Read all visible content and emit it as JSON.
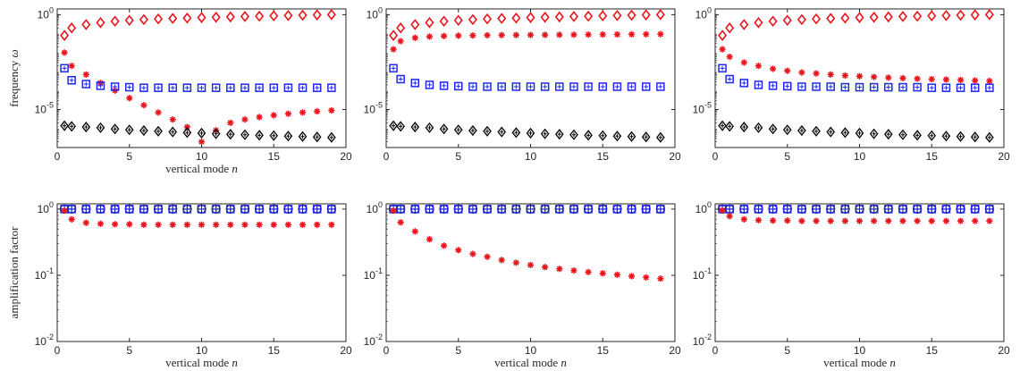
{
  "colors": {
    "red": "#e8141c",
    "blue": "#1c28e8",
    "black": "#000000",
    "axis": "#262626"
  },
  "chart_data": [
    {
      "type": "scatter",
      "yscale": "log",
      "xlim": [
        0,
        20
      ],
      "ylim": [
        1e-07,
        2
      ],
      "xticks": [
        "0",
        "5",
        "10",
        "15",
        "20"
      ],
      "yticks": [
        {
          "value": 1e-05,
          "base": "10",
          "exp": "-5"
        },
        {
          "value": 1,
          "base": "10",
          "exp": "0"
        }
      ],
      "xlabel": "vertical mode",
      "xlabel_var": "n",
      "ylabel": "frequency",
      "ylabel_var": "ω",
      "x": [
        0.5,
        1,
        2,
        3,
        4,
        5,
        6,
        7,
        8,
        9,
        10,
        11,
        12,
        13,
        14,
        15,
        16,
        17,
        18,
        19
      ],
      "series": [
        {
          "marker": "diamond",
          "color": "red",
          "values": [
            0.08,
            0.2,
            0.3,
            0.38,
            0.45,
            0.5,
            0.55,
            0.6,
            0.63,
            0.66,
            0.7,
            0.73,
            0.76,
            0.8,
            0.83,
            0.86,
            0.9,
            0.93,
            0.97,
            1.0
          ]
        },
        {
          "marker": "asterisk",
          "color": "red",
          "values": [
            0.01,
            0.002,
            0.0007,
            0.00025,
            0.0001,
            4e-05,
            1.7e-05,
            7e-06,
            3e-06,
            1.2e-06,
            2e-07,
            8e-07,
            2e-06,
            3e-06,
            4e-06,
            5e-06,
            6e-06,
            7e-06,
            8e-06,
            9e-06
          ]
        },
        {
          "marker": "square",
          "color": "blue",
          "values": [
            0.0015,
            0.00035,
            0.00022,
            0.00018,
            0.00016,
            0.00015,
            0.00014,
            0.00014,
            0.00014,
            0.00014,
            0.00014,
            0.00014,
            0.00014,
            0.00014,
            0.00014,
            0.00014,
            0.00014,
            0.00014,
            0.00014,
            0.00014
          ]
        },
        {
          "marker": "diamond-plus",
          "color": "black",
          "values": [
            1.4e-06,
            1.3e-06,
            1.2e-06,
            1.1e-06,
            9.5e-07,
            8.5e-07,
            7.8e-07,
            7.2e-07,
            6.6e-07,
            6.1e-07,
            5.7e-07,
            5.3e-07,
            5e-07,
            4.7e-07,
            4.4e-07,
            4.2e-07,
            4e-07,
            3.8e-07,
            3.6e-07,
            3.4e-07
          ]
        }
      ]
    },
    {
      "type": "scatter",
      "yscale": "log",
      "xlim": [
        0,
        20
      ],
      "ylim": [
        1e-07,
        2
      ],
      "xticks": [
        "0",
        "5",
        "10",
        "15",
        "20"
      ],
      "yticks": [
        {
          "value": 1e-05,
          "base": "10",
          "exp": "-5"
        },
        {
          "value": 1,
          "base": "10",
          "exp": "0"
        }
      ],
      "xlabel": "",
      "xlabel_var": "",
      "ylabel": "",
      "ylabel_var": "",
      "x": [
        0.5,
        1,
        2,
        3,
        4,
        5,
        6,
        7,
        8,
        9,
        10,
        11,
        12,
        13,
        14,
        15,
        16,
        17,
        18,
        19
      ],
      "series": [
        {
          "marker": "diamond",
          "color": "red",
          "values": [
            0.08,
            0.2,
            0.3,
            0.38,
            0.45,
            0.5,
            0.55,
            0.6,
            0.63,
            0.66,
            0.7,
            0.73,
            0.76,
            0.8,
            0.83,
            0.86,
            0.9,
            0.93,
            0.97,
            1.0
          ]
        },
        {
          "marker": "asterisk",
          "color": "red",
          "values": [
            0.015,
            0.04,
            0.06,
            0.07,
            0.075,
            0.078,
            0.08,
            0.082,
            0.083,
            0.084,
            0.085,
            0.086,
            0.087,
            0.088,
            0.089,
            0.09,
            0.091,
            0.092,
            0.093,
            0.094
          ]
        },
        {
          "marker": "square",
          "color": "blue",
          "values": [
            0.0015,
            0.0004,
            0.00025,
            0.0002,
            0.00018,
            0.00017,
            0.00016,
            0.00016,
            0.00016,
            0.00016,
            0.00016,
            0.00016,
            0.00016,
            0.00016,
            0.00016,
            0.00016,
            0.00016,
            0.00016,
            0.00016,
            0.00016
          ]
        },
        {
          "marker": "diamond-plus",
          "color": "black",
          "values": [
            1.4e-06,
            1.3e-06,
            1.2e-06,
            1.1e-06,
            9.5e-07,
            8.5e-07,
            7.8e-07,
            7.2e-07,
            6.6e-07,
            6.1e-07,
            5.7e-07,
            5.3e-07,
            5e-07,
            4.7e-07,
            4.4e-07,
            4.2e-07,
            4e-07,
            3.8e-07,
            3.6e-07,
            3.4e-07
          ]
        }
      ]
    },
    {
      "type": "scatter",
      "yscale": "log",
      "xlim": [
        0,
        20
      ],
      "ylim": [
        1e-07,
        2
      ],
      "xticks": [
        "0",
        "5",
        "10",
        "15",
        "20"
      ],
      "yticks": [
        {
          "value": 1e-05,
          "base": "10",
          "exp": "-5"
        },
        {
          "value": 1,
          "base": "10",
          "exp": "0"
        }
      ],
      "xlabel": "",
      "xlabel_var": "",
      "ylabel": "",
      "ylabel_var": "",
      "x": [
        0.5,
        1,
        2,
        3,
        4,
        5,
        6,
        7,
        8,
        9,
        10,
        11,
        12,
        13,
        14,
        15,
        16,
        17,
        18,
        19
      ],
      "series": [
        {
          "marker": "diamond",
          "color": "red",
          "values": [
            0.08,
            0.2,
            0.3,
            0.38,
            0.45,
            0.5,
            0.55,
            0.6,
            0.63,
            0.66,
            0.7,
            0.73,
            0.76,
            0.8,
            0.83,
            0.86,
            0.9,
            0.93,
            0.97,
            1.0
          ]
        },
        {
          "marker": "asterisk",
          "color": "red",
          "values": [
            0.015,
            0.006,
            0.003,
            0.002,
            0.0014,
            0.0011,
            0.0009,
            0.0008,
            0.0007,
            0.00062,
            0.00057,
            0.00052,
            0.00048,
            0.00045,
            0.00042,
            0.0004,
            0.00038,
            0.00036,
            0.00034,
            0.00032
          ]
        },
        {
          "marker": "square",
          "color": "blue",
          "values": [
            0.0015,
            0.0004,
            0.00025,
            0.0002,
            0.00018,
            0.00017,
            0.00016,
            0.00016,
            0.00016,
            0.00015,
            0.00015,
            0.00015,
            0.00015,
            0.00015,
            0.00015,
            0.00014,
            0.00014,
            0.00014,
            0.00014,
            0.00014
          ]
        },
        {
          "marker": "diamond-plus",
          "color": "black",
          "values": [
            1.4e-06,
            1.3e-06,
            1.2e-06,
            1.1e-06,
            9.5e-07,
            8.5e-07,
            7.8e-07,
            7.2e-07,
            6.6e-07,
            6.1e-07,
            5.7e-07,
            5.3e-07,
            5e-07,
            4.7e-07,
            4.4e-07,
            4.2e-07,
            4e-07,
            3.8e-07,
            3.6e-07,
            3.4e-07
          ]
        }
      ]
    },
    {
      "type": "scatter",
      "yscale": "log",
      "xlim": [
        0,
        20
      ],
      "ylim": [
        0.01,
        1.2
      ],
      "xticks": [
        "0",
        "5",
        "10",
        "15",
        "20"
      ],
      "yticks": [
        {
          "value": 0.01,
          "base": "10",
          "exp": "-2"
        },
        {
          "value": 0.1,
          "base": "10",
          "exp": "-1"
        },
        {
          "value": 1,
          "base": "10",
          "exp": "0"
        }
      ],
      "xlabel": "vertical mode",
      "xlabel_var": "n",
      "ylabel": "amplification factor",
      "ylabel_var": "",
      "x": [
        0.5,
        1,
        2,
        3,
        4,
        5,
        6,
        7,
        8,
        9,
        10,
        11,
        12,
        13,
        14,
        15,
        16,
        17,
        18,
        19
      ],
      "series": [
        {
          "marker": "circle-plus",
          "color": "black",
          "values": [
            1,
            1,
            1,
            1,
            1,
            1,
            1,
            1,
            1,
            1,
            1,
            1,
            1,
            1,
            1,
            1,
            1,
            1,
            1,
            1
          ]
        },
        {
          "marker": "square",
          "color": "blue",
          "values": [
            1,
            1,
            1,
            1,
            1,
            1,
            1,
            1,
            1,
            1,
            1,
            1,
            1,
            1,
            1,
            1,
            1,
            1,
            1,
            1
          ]
        },
        {
          "marker": "asterisk",
          "color": "red",
          "values": [
            0.95,
            0.7,
            0.62,
            0.6,
            0.59,
            0.59,
            0.58,
            0.58,
            0.58,
            0.58,
            0.58,
            0.58,
            0.58,
            0.58,
            0.58,
            0.58,
            0.58,
            0.58,
            0.58,
            0.58
          ]
        }
      ]
    },
    {
      "type": "scatter",
      "yscale": "log",
      "xlim": [
        0,
        20
      ],
      "ylim": [
        0.01,
        1.2
      ],
      "xticks": [
        "0",
        "5",
        "10",
        "15",
        "20"
      ],
      "yticks": [
        {
          "value": 0.01,
          "base": "10",
          "exp": "-2"
        },
        {
          "value": 0.1,
          "base": "10",
          "exp": "-1"
        },
        {
          "value": 1,
          "base": "10",
          "exp": "0"
        }
      ],
      "xlabel": "vertical mode",
      "xlabel_var": "n",
      "ylabel": "",
      "ylabel_var": "",
      "x": [
        0.5,
        1,
        2,
        3,
        4,
        5,
        6,
        7,
        8,
        9,
        10,
        11,
        12,
        13,
        14,
        15,
        16,
        17,
        18,
        19
      ],
      "series": [
        {
          "marker": "circle-plus",
          "color": "black",
          "values": [
            1,
            1,
            1,
            1,
            1,
            1,
            1,
            1,
            1,
            1,
            1,
            1,
            1,
            1,
            1,
            1,
            1,
            1,
            1,
            1
          ]
        },
        {
          "marker": "square",
          "color": "blue",
          "values": [
            1,
            1,
            1,
            1,
            1,
            1,
            1,
            1,
            1,
            1,
            1,
            1,
            1,
            1,
            1,
            1,
            1,
            1,
            1,
            1
          ]
        },
        {
          "marker": "asterisk",
          "color": "red",
          "values": [
            0.95,
            0.63,
            0.46,
            0.35,
            0.28,
            0.24,
            0.21,
            0.19,
            0.17,
            0.155,
            0.143,
            0.133,
            0.125,
            0.118,
            0.112,
            0.107,
            0.102,
            0.097,
            0.093,
            0.089
          ]
        }
      ]
    },
    {
      "type": "scatter",
      "yscale": "log",
      "xlim": [
        0,
        20
      ],
      "ylim": [
        0.01,
        1.2
      ],
      "xticks": [
        "0",
        "5",
        "10",
        "15",
        "20"
      ],
      "yticks": [
        {
          "value": 0.01,
          "base": "10",
          "exp": "-2"
        },
        {
          "value": 0.1,
          "base": "10",
          "exp": "-1"
        },
        {
          "value": 1,
          "base": "10",
          "exp": "0"
        }
      ],
      "xlabel": "vertical mode",
      "xlabel_var": "n",
      "ylabel": "",
      "ylabel_var": "",
      "x": [
        0.5,
        1,
        2,
        3,
        4,
        5,
        6,
        7,
        8,
        9,
        10,
        11,
        12,
        13,
        14,
        15,
        16,
        17,
        18,
        19
      ],
      "series": [
        {
          "marker": "circle-plus",
          "color": "black",
          "values": [
            1,
            1,
            1,
            1,
            1,
            1,
            1,
            1,
            1,
            1,
            1,
            1,
            1,
            1,
            1,
            1,
            1,
            1,
            1,
            1
          ]
        },
        {
          "marker": "square",
          "color": "blue",
          "values": [
            1,
            1,
            1,
            1,
            1,
            1,
            1,
            1,
            1,
            1,
            1,
            1,
            1,
            1,
            1,
            1,
            1,
            1,
            1,
            1
          ]
        },
        {
          "marker": "asterisk",
          "color": "red",
          "values": [
            0.96,
            0.78,
            0.7,
            0.68,
            0.67,
            0.67,
            0.66,
            0.66,
            0.66,
            0.66,
            0.66,
            0.66,
            0.66,
            0.66,
            0.66,
            0.66,
            0.66,
            0.66,
            0.66,
            0.66
          ]
        }
      ]
    }
  ]
}
